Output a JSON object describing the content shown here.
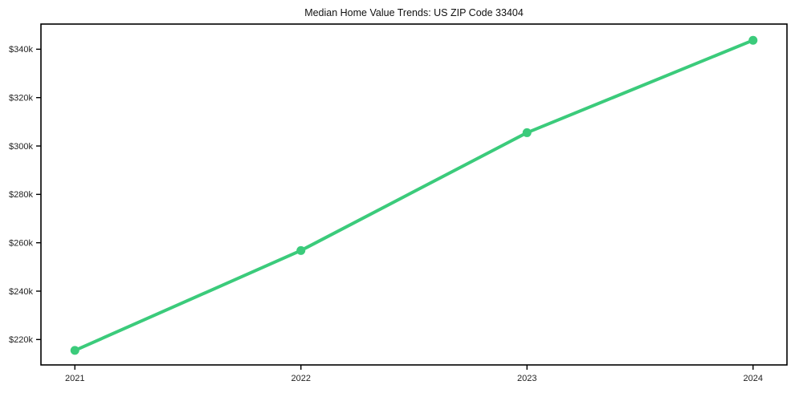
{
  "chart_data": {
    "type": "line",
    "title": "Median Home Value Trends: US ZIP Code 33404",
    "x": [
      2021,
      2022,
      2023,
      2024
    ],
    "xtick_labels": [
      "2021",
      "2022",
      "2023",
      "2024"
    ],
    "series": [
      {
        "name": "Median Home Value",
        "values": [
          215500,
          256800,
          305500,
          343700
        ]
      }
    ],
    "xlabel": "",
    "ylabel": "",
    "xlim": [
      2020.85,
      2024.15
    ],
    "ylim": [
      209500,
      350400
    ],
    "yticks": [
      220000,
      240000,
      260000,
      280000,
      300000,
      320000,
      340000
    ],
    "ytick_labels": [
      "$220k",
      "$240k",
      "$260k",
      "$280k",
      "$300k",
      "$320k",
      "$340k"
    ],
    "grid": false,
    "legend_position": "none",
    "line_color": "#3bcb7b",
    "marker": "circle",
    "marker_radius": 5.5,
    "line_width": 4,
    "axis_color": "#000000",
    "tick_label_color": "#1f1f1f",
    "background_color": "#ffffff"
  }
}
